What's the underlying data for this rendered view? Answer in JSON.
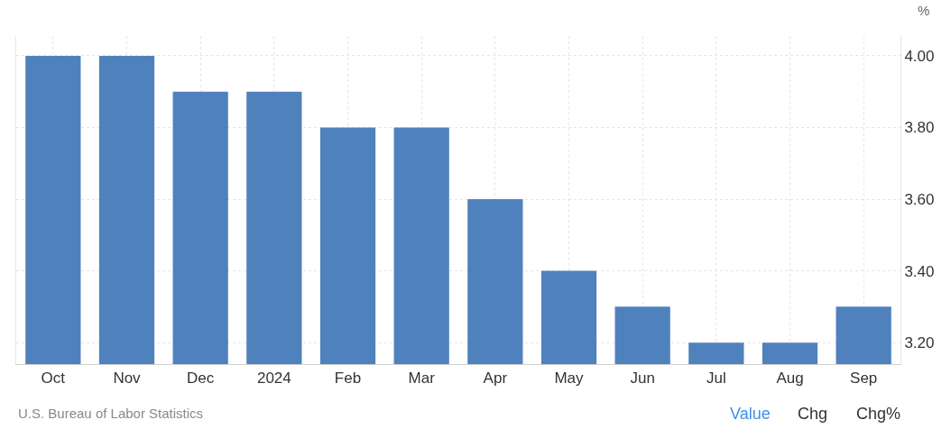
{
  "chart_data": {
    "type": "bar",
    "ylabel": "%",
    "categories": [
      "Oct",
      "Nov",
      "Dec",
      "2024",
      "Feb",
      "Mar",
      "Apr",
      "May",
      "Jun",
      "Jul",
      "Aug",
      "Sep"
    ],
    "values": [
      4.0,
      4.0,
      3.9,
      3.9,
      3.8,
      3.8,
      3.6,
      3.4,
      3.3,
      3.2,
      3.2,
      3.3
    ],
    "color": "#4f81bd",
    "ylim": [
      3.14,
      4.055
    ],
    "yticks": [
      {
        "value": 3.2,
        "label": "3.20"
      },
      {
        "value": 3.4,
        "label": "3.40"
      },
      {
        "value": 3.6,
        "label": "3.60"
      },
      {
        "value": 3.8,
        "label": "3.80"
      },
      {
        "value": 4.0,
        "label": "4.00"
      }
    ],
    "grid": true,
    "annotations": [
      "U.S. Bureau of Labor Statistics",
      "Value",
      "Chg",
      "Chg%"
    ]
  }
}
